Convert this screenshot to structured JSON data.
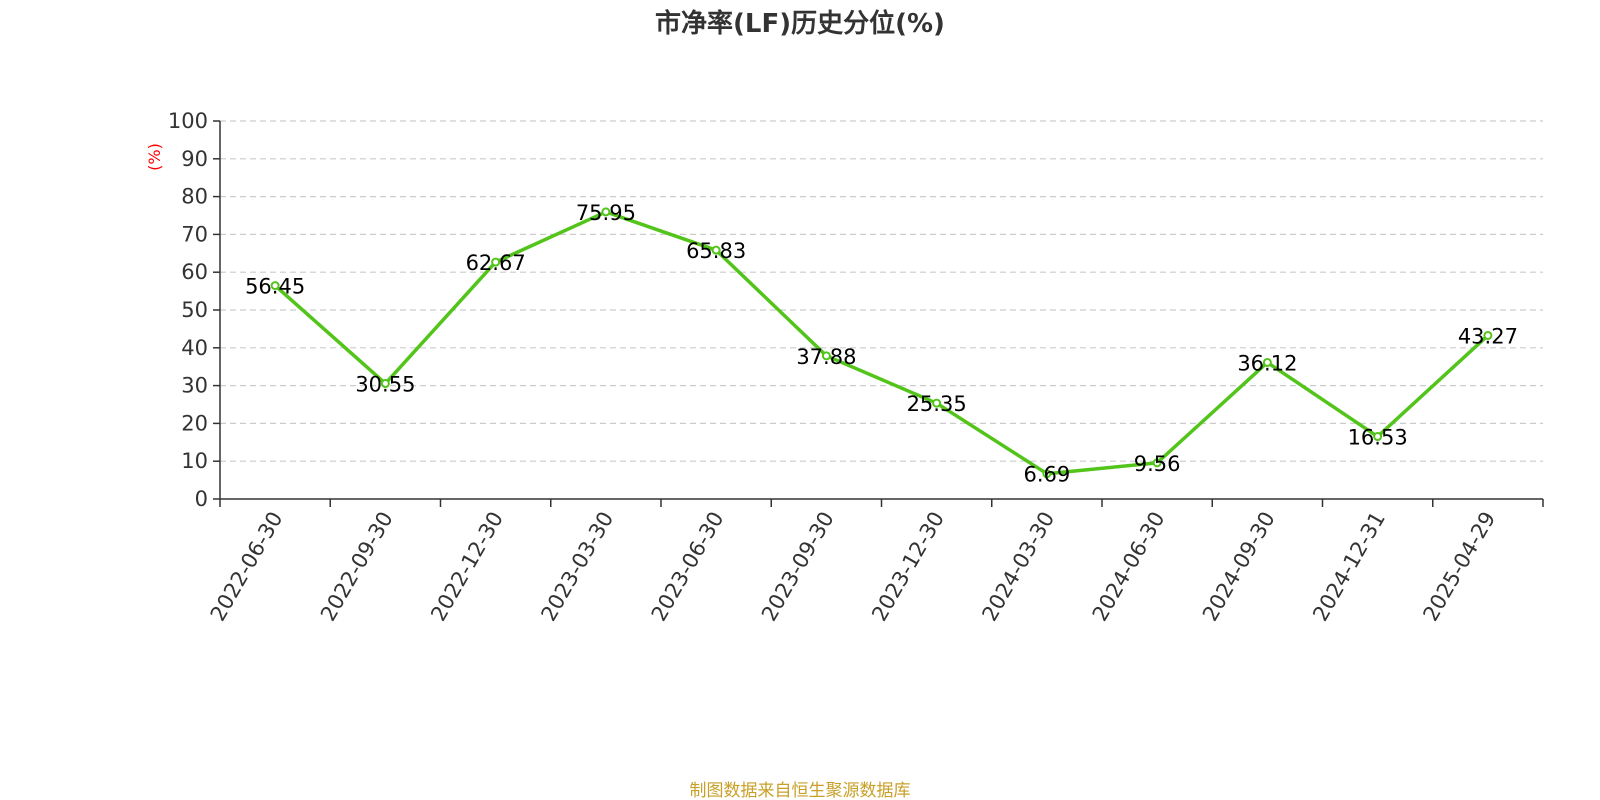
{
  "chart_data": {
    "type": "line",
    "title": "市净率(LF)历史分位(%)",
    "ylabel": "(%)",
    "xlabel": "",
    "categories": [
      "2022-06-30",
      "2022-09-30",
      "2022-12-30",
      "2023-03-30",
      "2023-06-30",
      "2023-09-30",
      "2023-12-30",
      "2024-03-30",
      "2024-06-30",
      "2024-09-30",
      "2024-12-31",
      "2025-04-29"
    ],
    "series": [
      {
        "values": [
          56.45,
          30.55,
          62.67,
          75.95,
          65.83,
          37.88,
          25.35,
          6.69,
          9.56,
          36.12,
          16.53,
          43.27
        ]
      }
    ],
    "ylim": [
      0,
      100
    ],
    "yticks": [
      0,
      10,
      20,
      30,
      40,
      50,
      60,
      70,
      80,
      90,
      100
    ],
    "grid": true,
    "colors": {
      "line": "#52c41a",
      "title": "#333333",
      "ylabel": "#ff0000",
      "grid": "#cccccc",
      "source": "#c8a028"
    }
  },
  "source": "制图数据来自恒生聚源数据库"
}
